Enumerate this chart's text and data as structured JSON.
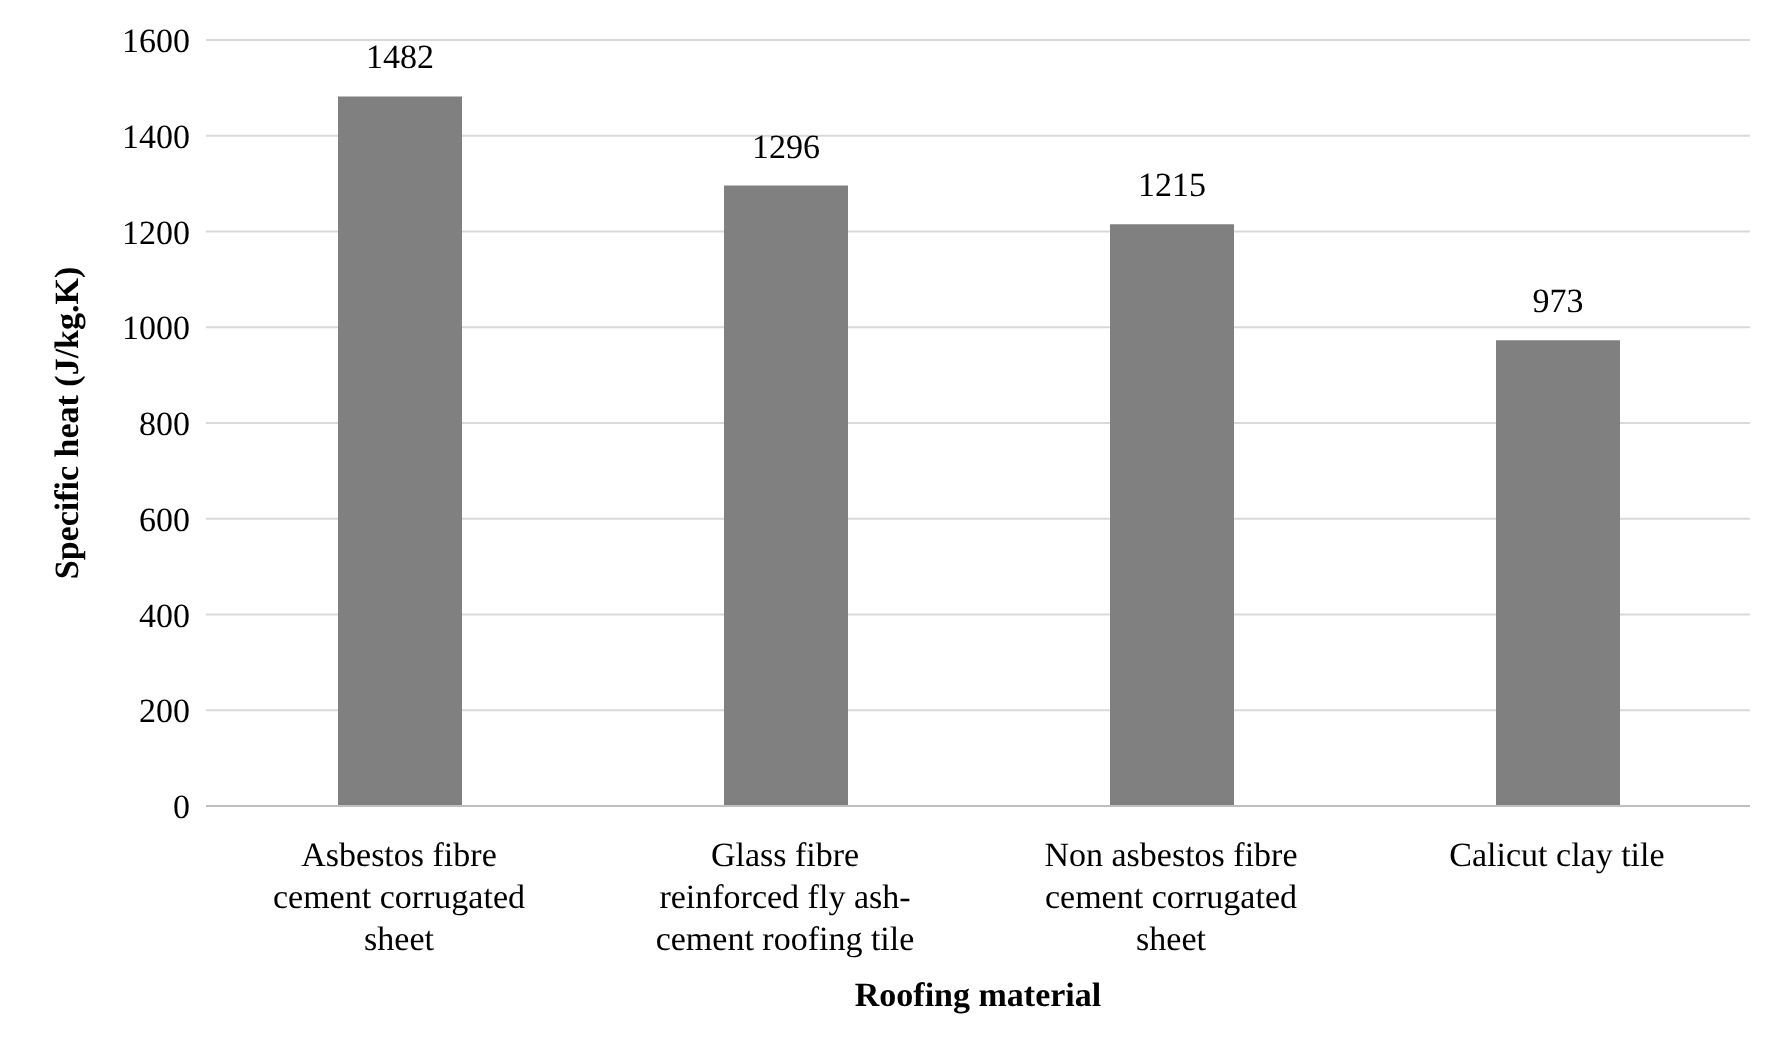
{
  "chart_data": {
    "type": "bar",
    "xlabel": "Roofing  material",
    "ylabel": "Specific heat  (J/kg.K)",
    "categories": [
      "Asbestos fibre cement corrugated sheet",
      "Glass fibre reinforced fly ash-cement roofing tile",
      "Non asbestos fibre cement corrugated sheet",
      "Calicut clay tile"
    ],
    "values": [
      1482,
      1296,
      1215,
      973
    ],
    "color": "#808080",
    "ylim": [
      0,
      1600
    ],
    "yticks": [
      0,
      200,
      400,
      600,
      800,
      1000,
      1200,
      1400,
      1600
    ],
    "grid": "y",
    "data_labels": true
  }
}
